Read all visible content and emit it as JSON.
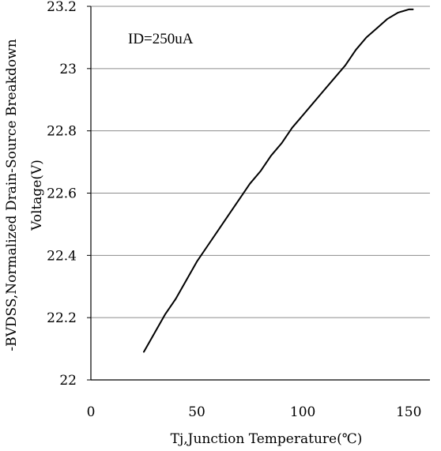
{
  "chart_data": {
    "type": "line",
    "title": "",
    "xlabel": "Tj,Junction Temperature(℃)",
    "ylabel_line1": "-BVDSS,Normalized Drain-Source Breakdown",
    "ylabel_line2": "Voltage(V)",
    "annotation": "ID=250uA",
    "xlim": [
      0,
      160
    ],
    "ylim": [
      22,
      23.2
    ],
    "x_ticks": [
      0,
      50,
      100,
      150
    ],
    "x_tick_labels": [
      "0",
      "50",
      "100",
      "150"
    ],
    "y_ticks": [
      22,
      22.2,
      22.4,
      22.6,
      22.8,
      23,
      23.2
    ],
    "y_tick_labels": [
      "22",
      "22.2",
      "22.4",
      "22.6",
      "22.8",
      "23",
      "23.2"
    ],
    "grid": "horizontal",
    "series": [
      {
        "color": "#000000",
        "x": [
          25,
          30,
          35,
          40,
          45,
          50,
          55,
          60,
          65,
          70,
          75,
          80,
          85,
          90,
          95,
          100,
          105,
          110,
          115,
          120,
          125,
          130,
          135,
          140,
          145,
          150,
          152
        ],
        "y": [
          22.09,
          22.15,
          22.21,
          22.26,
          22.32,
          22.38,
          22.43,
          22.48,
          22.53,
          22.58,
          22.63,
          22.67,
          22.72,
          22.76,
          22.81,
          22.85,
          22.89,
          22.93,
          22.97,
          23.01,
          23.06,
          23.1,
          23.13,
          23.16,
          23.18,
          23.19,
          23.19
        ]
      }
    ]
  }
}
